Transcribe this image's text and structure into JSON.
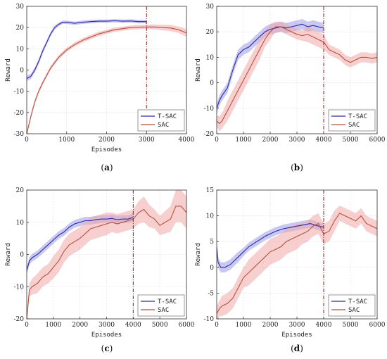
{
  "chart_data": [
    {
      "type": "line",
      "panel": "a",
      "caption": "(a)",
      "xlabel": "Episodes",
      "ylabel": "Reward",
      "xlim": [
        0,
        4000
      ],
      "ylim": [
        -30,
        30
      ],
      "xticks": [
        "0",
        "1000",
        "2000",
        "3000",
        "4000"
      ],
      "yticks": [
        "-30",
        "-20",
        "-10",
        "0",
        "10",
        "20",
        "30"
      ],
      "grid": true,
      "legend_position": "lower-right",
      "vline_x": 3000,
      "series": [
        {
          "name": "T-SAC",
          "color": "#2b2ba8",
          "band_color": "#9a9ae6",
          "x": [
            0,
            100,
            200,
            300,
            400,
            500,
            600,
            700,
            800,
            900,
            1000,
            1200,
            1400,
            1600,
            1800,
            2000,
            2200,
            2400,
            2600,
            2800,
            3000
          ],
          "values": [
            -4,
            -3,
            0,
            4,
            9,
            13,
            17,
            20,
            21.5,
            22.5,
            22.5,
            22,
            22.5,
            22.8,
            23,
            23,
            23.2,
            23,
            23.1,
            22.8,
            22.8
          ],
          "band": [
            1.2,
            1.2,
            1.2,
            1.2,
            1.2,
            1.2,
            1,
            1,
            0.8,
            0.8,
            0.8,
            0.8,
            0.8,
            0.8,
            0.8,
            0.8,
            0.8,
            0.8,
            0.8,
            0.8,
            0.8
          ]
        },
        {
          "name": "SAC",
          "color": "#b5523c",
          "band_color": "#f0a8a8",
          "x": [
            0,
            100,
            200,
            300,
            400,
            600,
            800,
            1000,
            1200,
            1400,
            1600,
            1800,
            2000,
            2200,
            2400,
            2600,
            2800,
            3000,
            3200,
            3400,
            3600,
            3800,
            4000
          ],
          "values": [
            -30,
            -22,
            -15,
            -10,
            -6,
            1,
            6,
            9.5,
            12,
            14,
            15.5,
            17,
            18,
            19,
            19.5,
            20,
            20.2,
            20.3,
            20.3,
            20,
            19.8,
            19,
            17.5
          ],
          "band": [
            1,
            1,
            1,
            1,
            1,
            1,
            1,
            1,
            1,
            1,
            1,
            1,
            1,
            1,
            1,
            1,
            1,
            1,
            1.2,
            1.3,
            1.5,
            1.5,
            1.8
          ]
        }
      ]
    },
    {
      "type": "line",
      "panel": "b",
      "caption": "(b)",
      "xlabel": "",
      "ylabel": "Reward",
      "xlim": [
        0,
        6000
      ],
      "ylim": [
        -20,
        30
      ],
      "xticks": [
        "0",
        "1000",
        "2000",
        "3000",
        "4000",
        "5000",
        "6000"
      ],
      "yticks": [
        "-20",
        "-10",
        "0",
        "10",
        "20",
        "30"
      ],
      "grid": true,
      "legend_position": "lower-right",
      "vline_x": 4000,
      "series": [
        {
          "name": "T-SAC",
          "color": "#2b2ba8",
          "band_color": "#9a9ae6",
          "x": [
            0,
            100,
            200,
            400,
            600,
            800,
            1000,
            1200,
            1400,
            1600,
            1800,
            2000,
            2200,
            2400,
            2600,
            2800,
            3000,
            3200,
            3400,
            3600,
            3800,
            4000
          ],
          "values": [
            -10,
            -7,
            -5,
            -2,
            5,
            11,
            13,
            14,
            16,
            18,
            20,
            21,
            21.5,
            22,
            21.5,
            22,
            22.5,
            23,
            22,
            22.5,
            22,
            21.5
          ],
          "band": [
            2,
            2,
            2,
            2,
            2,
            2,
            2,
            2,
            2,
            2,
            2,
            2,
            2,
            2,
            2,
            2,
            2,
            2,
            2,
            2,
            2,
            2
          ]
        },
        {
          "name": "SAC",
          "color": "#b5523c",
          "band_color": "#f0a8a8",
          "x": [
            0,
            100,
            200,
            400,
            600,
            800,
            1000,
            1200,
            1400,
            1600,
            1800,
            2000,
            2200,
            2400,
            2600,
            2800,
            3000,
            3200,
            3400,
            3600,
            3800,
            4000,
            4200,
            4400,
            4600,
            4800,
            5000,
            5200,
            5400,
            5600,
            5800,
            6000
          ],
          "values": [
            -15,
            -16,
            -15,
            -11,
            -7,
            -3,
            1,
            5,
            9,
            13,
            17,
            20,
            22,
            22,
            21,
            20,
            19,
            18.5,
            19,
            18,
            17,
            16,
            13,
            12,
            11,
            9,
            8,
            9,
            10,
            10,
            9.5,
            10
          ],
          "band": [
            2,
            3,
            3,
            4,
            4,
            4,
            4,
            4,
            4,
            4,
            3,
            3,
            2,
            2,
            2,
            2,
            2,
            2,
            3,
            3,
            3,
            3,
            2,
            2,
            2,
            2,
            2,
            2,
            2,
            2,
            2,
            2
          ]
        }
      ]
    },
    {
      "type": "line",
      "panel": "c",
      "caption": "(c)",
      "xlabel": "Episodes",
      "ylabel": "Reward",
      "xlim": [
        0,
        6000
      ],
      "ylim": [
        -20,
        20
      ],
      "xticks": [
        "0",
        "1000",
        "2000",
        "3000",
        "4000",
        "5000",
        "6000"
      ],
      "yticks": [
        "-20",
        "-10",
        "0",
        "10",
        "20"
      ],
      "grid": true,
      "legend_position": "lower-right",
      "vline_x": 4000,
      "series": [
        {
          "name": "T-SAC",
          "color": "#2b2ba8",
          "band_color": "#9a9ae6",
          "x": [
            0,
            100,
            200,
            400,
            600,
            800,
            1000,
            1200,
            1400,
            1600,
            1800,
            2000,
            2200,
            2400,
            2600,
            2800,
            3000,
            3200,
            3400,
            3600,
            3800,
            4000
          ],
          "values": [
            -5,
            -2,
            -1,
            0,
            1.5,
            3,
            4.5,
            6,
            7,
            8.5,
            9.5,
            10,
            10.5,
            10.5,
            10.8,
            11,
            11,
            11.2,
            10.8,
            11,
            11,
            11.5
          ],
          "band": [
            1.2,
            1.2,
            1.2,
            1.2,
            1.2,
            1.2,
            1.2,
            1.2,
            1.2,
            1.2,
            1.2,
            1.2,
            1.2,
            1.2,
            1.2,
            1.2,
            1.2,
            1.2,
            1.2,
            1.2,
            1.2,
            1.2
          ]
        },
        {
          "name": "SAC",
          "color": "#b5523c",
          "band_color": "#f0a8a8",
          "x": [
            0,
            100,
            200,
            400,
            600,
            800,
            1000,
            1200,
            1400,
            1600,
            1800,
            2000,
            2200,
            2400,
            2600,
            2800,
            3000,
            3200,
            3400,
            3600,
            3800,
            4000,
            4200,
            4400,
            4600,
            4800,
            5000,
            5200,
            5400,
            5600,
            5800,
            6000
          ],
          "values": [
            -20,
            -11,
            -10,
            -9,
            -7,
            -6,
            -4,
            -2,
            1,
            3,
            4,
            5,
            6.5,
            8,
            8.5,
            9,
            9.5,
            10,
            9.5,
            10,
            10.5,
            11,
            13,
            14,
            12,
            11,
            9,
            10,
            11,
            15,
            15,
            13
          ],
          "band": [
            1,
            2,
            2.5,
            3,
            3,
            3,
            3.5,
            3.5,
            3.5,
            3.5,
            3.5,
            3.5,
            3.5,
            3.5,
            3.5,
            3.5,
            3.5,
            3,
            3,
            3,
            3,
            3,
            3.5,
            4,
            3.5,
            3,
            3,
            3.5,
            4,
            5,
            5,
            5
          ]
        }
      ]
    },
    {
      "type": "line",
      "panel": "d",
      "caption": "(d)",
      "xlabel": "Episodes",
      "ylabel": "Reward",
      "xlim": [
        0,
        6000
      ],
      "ylim": [
        -10,
        15
      ],
      "xticks": [
        "0",
        "1000",
        "2000",
        "3000",
        "4000",
        "5000",
        "6000"
      ],
      "yticks": [
        "-10",
        "-5",
        "0",
        "5",
        "10",
        "15"
      ],
      "grid": true,
      "legend_position": "lower-right",
      "vline_x": 4000,
      "series": [
        {
          "name": "T-SAC",
          "color": "#2b2ba8",
          "band_color": "#9a9ae6",
          "x": [
            0,
            50,
            150,
            300,
            500,
            800,
            1000,
            1200,
            1500,
            1800,
            2000,
            2200,
            2500,
            2800,
            3000,
            3200,
            3500,
            3800,
            4000
          ],
          "values": [
            4,
            1,
            0,
            0,
            0.5,
            2,
            3,
            4,
            5,
            6,
            6.5,
            7,
            7.5,
            7.8,
            8,
            8.2,
            8.5,
            8,
            7.8
          ],
          "band": [
            1,
            1,
            1,
            1,
            1,
            1,
            0.8,
            0.8,
            0.8,
            0.8,
            0.8,
            0.8,
            0.8,
            0.8,
            0.8,
            0.8,
            0.8,
            0.8,
            0.8
          ]
        },
        {
          "name": "SAC",
          "color": "#b5523c",
          "band_color": "#f0a8a8",
          "x": [
            0,
            100,
            200,
            400,
            600,
            800,
            1000,
            1200,
            1400,
            1600,
            1800,
            2000,
            2200,
            2400,
            2600,
            2800,
            3000,
            3200,
            3400,
            3600,
            3800,
            4000,
            4200,
            4400,
            4600,
            4800,
            5000,
            5200,
            5400,
            5600,
            5800,
            6000
          ],
          "values": [
            -9,
            -8,
            -7.5,
            -7,
            -6,
            -4,
            -2,
            -1,
            0,
            1,
            2,
            3,
            3.5,
            4,
            5,
            5.5,
            6,
            6.5,
            7,
            8,
            8.5,
            6.5,
            7,
            9,
            10.5,
            10,
            9.5,
            9,
            10,
            8.5,
            8,
            7.5
          ],
          "band": [
            1.5,
            1.5,
            2,
            2,
            2,
            2,
            2,
            2.5,
            2.5,
            2.5,
            2.5,
            2.5,
            2.5,
            2.5,
            2.5,
            2.5,
            2.5,
            2,
            2,
            2,
            2,
            2,
            2,
            2,
            1.5,
            1.5,
            1.5,
            1.5,
            1.5,
            1.5,
            1.5,
            1.5
          ]
        }
      ]
    }
  ]
}
